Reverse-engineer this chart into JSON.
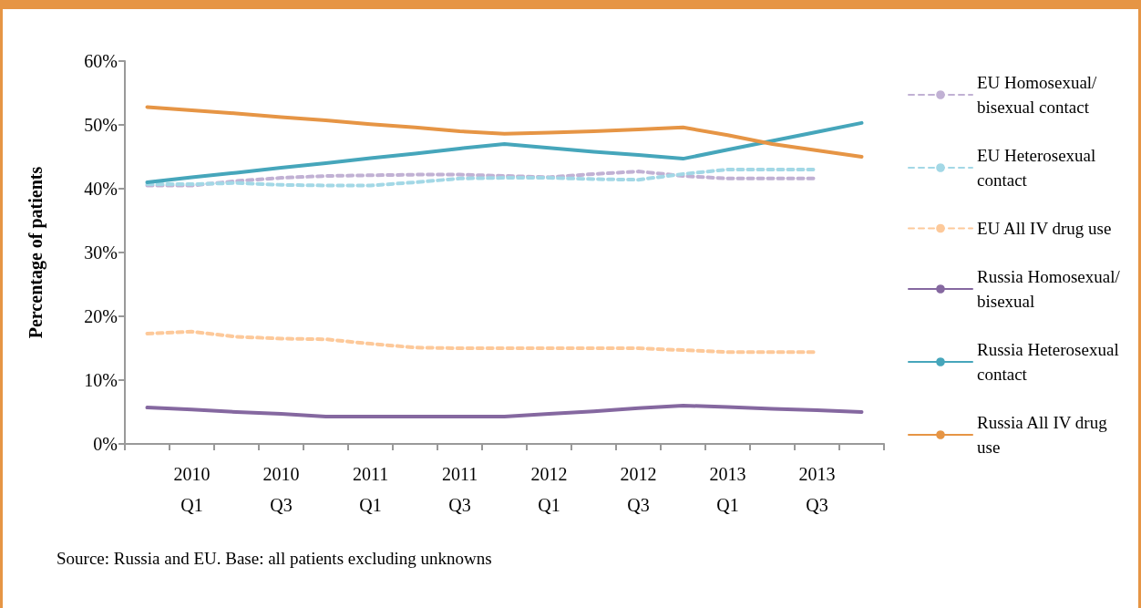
{
  "chart_data": {
    "type": "line",
    "ylabel": "Percentage of patients",
    "categories": [
      null,
      "2010 Q1",
      null,
      "2010 Q3",
      null,
      "2011 Q1",
      null,
      "2011 Q3",
      null,
      "2012 Q1",
      null,
      "2012 Q3",
      null,
      "2013 Q1",
      null,
      "2013 Q3",
      null
    ],
    "series": [
      {
        "name": "EU Homosexual/ bisexual contact",
        "color": "#c1b1d4",
        "line_style": "dashed",
        "values": [
          40.5,
          40.5,
          41.2,
          41.7,
          42.0,
          42.1,
          42.2,
          42.2,
          42.0,
          41.8,
          42.3,
          42.7,
          42.0,
          41.6,
          41.6,
          41.6,
          null
        ]
      },
      {
        "name": "EU Heterosexual contact",
        "color": "#a3d8e6",
        "line_style": "dashed",
        "values": [
          40.7,
          40.7,
          40.9,
          40.6,
          40.5,
          40.5,
          41.0,
          41.6,
          41.7,
          41.7,
          41.5,
          41.4,
          42.3,
          43.0,
          43.0,
          43.0,
          null
        ]
      },
      {
        "name": "EU All IV drug use",
        "color": "#fdc99a",
        "line_style": "dashed",
        "values": [
          17.3,
          17.6,
          16.8,
          16.5,
          16.4,
          15.7,
          15.1,
          15.0,
          15.0,
          15.0,
          15.0,
          15.0,
          14.7,
          14.4,
          14.4,
          14.4,
          null
        ]
      },
      {
        "name": "Russia Homosexual/ bisexual",
        "color": "#8568a0",
        "line_style": "solid",
        "values": [
          5.7,
          5.4,
          5.0,
          4.7,
          4.3,
          4.3,
          4.3,
          4.3,
          4.3,
          4.7,
          5.1,
          5.6,
          6.0,
          5.8,
          5.5,
          5.3,
          5.0
        ]
      },
      {
        "name": "Russia Heterosexual contact",
        "color": "#46a6bb",
        "line_style": "solid",
        "values": [
          41.0,
          41.8,
          42.5,
          43.3,
          44.0,
          44.8,
          45.5,
          46.3,
          47.0,
          46.4,
          45.8,
          45.3,
          44.7,
          46.1,
          47.5,
          48.9,
          50.3
        ]
      },
      {
        "name": "Russia All IV drug use",
        "color": "#e69545",
        "line_style": "solid",
        "values": [
          52.8,
          52.3,
          51.8,
          51.2,
          50.7,
          50.1,
          49.6,
          49.0,
          48.6,
          48.8,
          49.0,
          49.3,
          49.6,
          48.4,
          47.0,
          46.0,
          45.0
        ]
      }
    ],
    "ylim": [
      0,
      60
    ],
    "yticks": [
      {
        "value": 0,
        "label": "0%"
      },
      {
        "value": 10,
        "label": "10%"
      },
      {
        "value": 20,
        "label": "20%"
      },
      {
        "value": 30,
        "label": "30%"
      },
      {
        "value": 40,
        "label": "40%"
      },
      {
        "value": 50,
        "label": "50%"
      },
      {
        "value": 60,
        "label": "60%"
      }
    ],
    "grid": false,
    "legend": "right",
    "marker": "none",
    "annotations": [
      "Source: Russia and EU. Base: all patients excluding unknowns"
    ]
  }
}
